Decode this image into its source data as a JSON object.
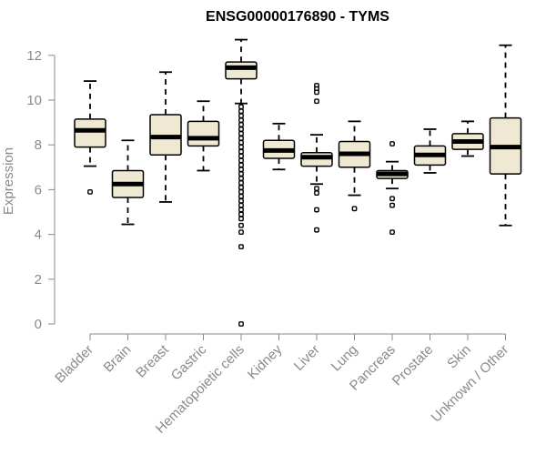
{
  "chart_data": {
    "type": "boxplot",
    "title": "ENSG00000176890 - TYMS",
    "ylabel": "Expression",
    "ylim": [
      0,
      12.6
    ],
    "yticks": [
      0,
      2,
      4,
      6,
      8,
      10,
      12
    ],
    "box_fill": "#efe8d2",
    "categories": [
      "Bladder",
      "Brain",
      "Breast",
      "Gastric",
      "Hematopoietic cells",
      "Kidney",
      "Liver",
      "Lung",
      "Pancreas",
      "Prostate",
      "Skin",
      "Unknown / Other"
    ],
    "boxes": [
      {
        "category": "Bladder",
        "whisker_low": 7.05,
        "q1": 7.9,
        "median": 8.65,
        "q3": 9.15,
        "whisker_high": 10.85,
        "outliers": [
          5.9
        ]
      },
      {
        "category": "Brain",
        "whisker_low": 4.45,
        "q1": 5.65,
        "median": 6.25,
        "q3": 6.85,
        "whisker_high": 8.2,
        "outliers": []
      },
      {
        "category": "Breast",
        "whisker_low": 5.45,
        "q1": 7.55,
        "median": 8.35,
        "q3": 9.35,
        "whisker_high": 11.25,
        "outliers": []
      },
      {
        "category": "Gastric",
        "whisker_low": 6.85,
        "q1": 7.95,
        "median": 8.3,
        "q3": 9.05,
        "whisker_high": 9.95,
        "outliers": []
      },
      {
        "category": "Hematopoietic cells",
        "whisker_low": 9.85,
        "q1": 10.95,
        "median": 11.45,
        "q3": 11.7,
        "whisker_high": 12.7,
        "outliers": [
          9.7,
          9.5,
          9.3,
          9.1,
          8.9,
          8.7,
          8.5,
          8.3,
          8.1,
          7.9,
          7.7,
          7.5,
          7.3,
          7.1,
          6.9,
          6.7,
          6.5,
          6.3,
          6.1,
          5.9,
          5.7,
          5.5,
          5.3,
          5.1,
          4.9,
          4.7,
          4.4,
          4.1,
          3.45,
          0.0
        ]
      },
      {
        "category": "Kidney",
        "whisker_low": 6.9,
        "q1": 7.4,
        "median": 7.75,
        "q3": 8.2,
        "whisker_high": 8.95,
        "outliers": []
      },
      {
        "category": "Liver",
        "whisker_low": 6.25,
        "q1": 7.05,
        "median": 7.45,
        "q3": 7.65,
        "whisker_high": 8.45,
        "outliers": [
          10.65,
          10.5,
          10.35,
          9.95,
          6.05,
          5.85,
          5.1,
          4.2
        ]
      },
      {
        "category": "Lung",
        "whisker_low": 5.75,
        "q1": 7.0,
        "median": 7.6,
        "q3": 8.15,
        "whisker_high": 9.05,
        "outliers": [
          5.15
        ]
      },
      {
        "category": "Pancreas",
        "whisker_low": 6.05,
        "q1": 6.5,
        "median": 6.7,
        "q3": 6.85,
        "whisker_high": 7.25,
        "outliers": [
          8.05,
          5.6,
          5.3,
          4.1
        ]
      },
      {
        "category": "Prostate",
        "whisker_low": 6.75,
        "q1": 7.1,
        "median": 7.55,
        "q3": 7.95,
        "whisker_high": 8.7,
        "outliers": []
      },
      {
        "category": "Skin",
        "whisker_low": 7.5,
        "q1": 7.8,
        "median": 8.15,
        "q3": 8.5,
        "whisker_high": 9.05,
        "outliers": []
      },
      {
        "category": "Unknown / Other",
        "whisker_low": 4.4,
        "q1": 6.7,
        "median": 7.9,
        "q3": 9.2,
        "whisker_high": 12.45,
        "outliers": []
      }
    ]
  }
}
